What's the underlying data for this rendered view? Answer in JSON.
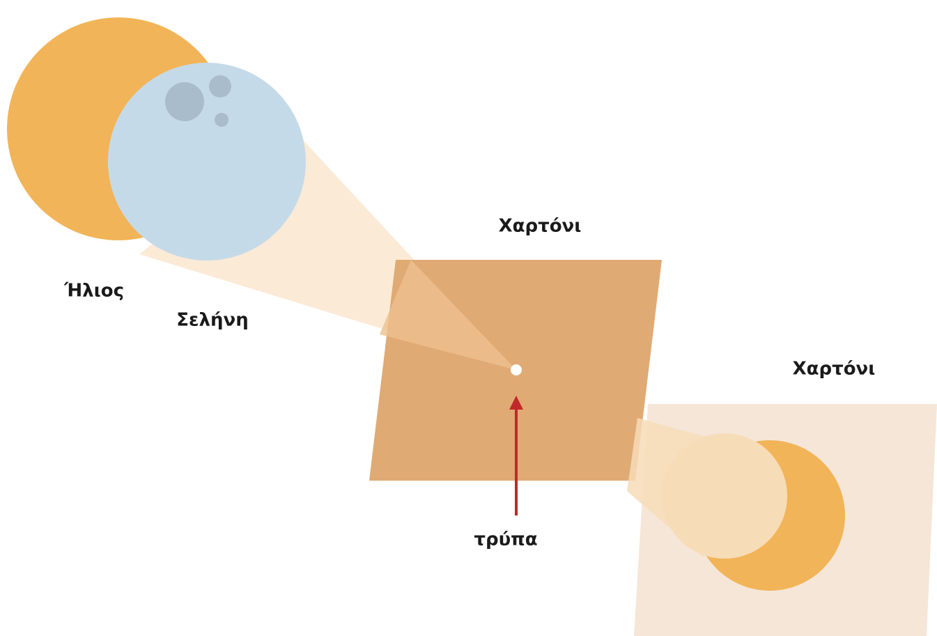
{
  "labels": {
    "sun": "Ήλιος",
    "moon": "Σελήνη",
    "card_front": "Χαρτόνι",
    "card_back": "Χαρτόνι",
    "hole": "τρύπα"
  }
}
